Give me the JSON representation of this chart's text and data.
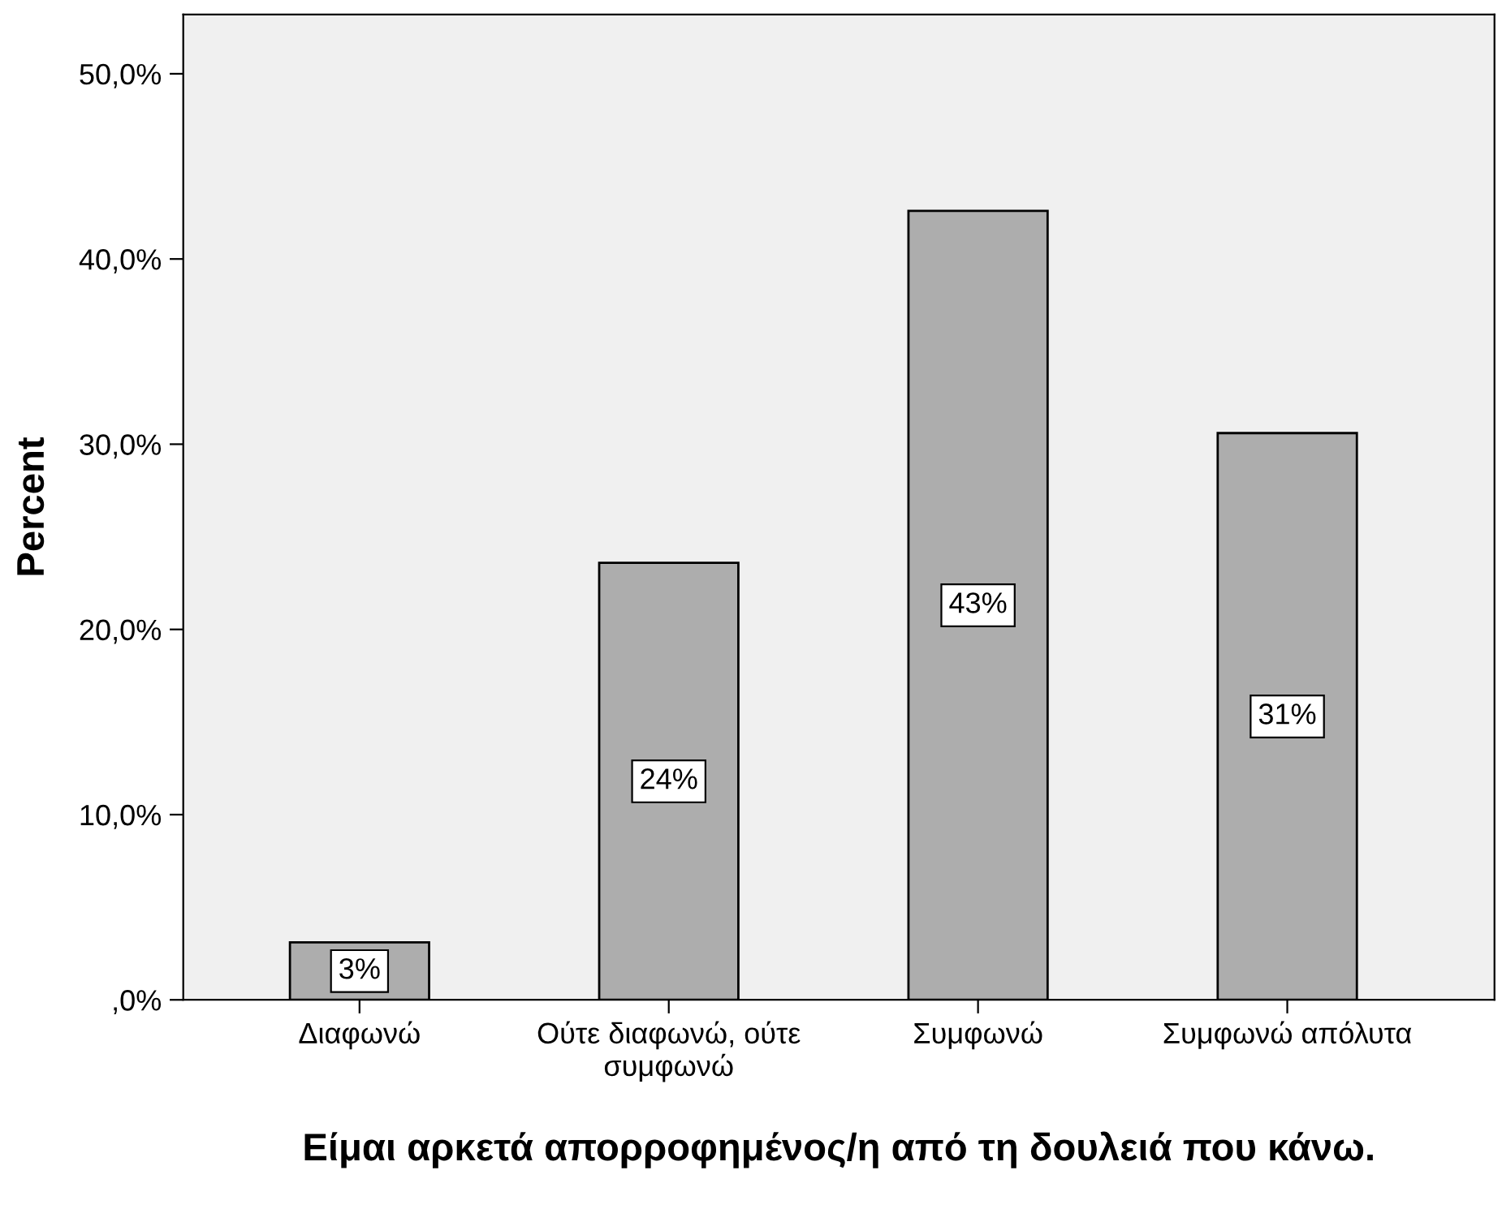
{
  "chart_data": {
    "type": "bar",
    "categories": [
      "Διαφωνώ",
      "Ούτε διαφωνώ, ούτε\nσυμφωνώ",
      "Συμφωνώ",
      "Συμφωνώ απόλυτα"
    ],
    "values": [
      3.1,
      23.6,
      42.6,
      30.6
    ],
    "value_labels": [
      "3%",
      "24%",
      "43%",
      "31%"
    ],
    "color": "#adadad",
    "ylabel": "Percent",
    "xlabel": "Είμαι αρκετά απορροφημένος/η από τη δουλειά που κάνω.",
    "ylim": [
      0,
      53.2
    ],
    "yticks": [
      {
        "value": 0,
        "label": ",0%"
      },
      {
        "value": 10,
        "label": "10,0%"
      },
      {
        "value": 20,
        "label": "20,0%"
      },
      {
        "value": 30,
        "label": "30,0%"
      },
      {
        "value": 40,
        "label": "40,0%"
      },
      {
        "value": 50,
        "label": "50,0%"
      }
    ],
    "grid": false,
    "legend": false
  }
}
